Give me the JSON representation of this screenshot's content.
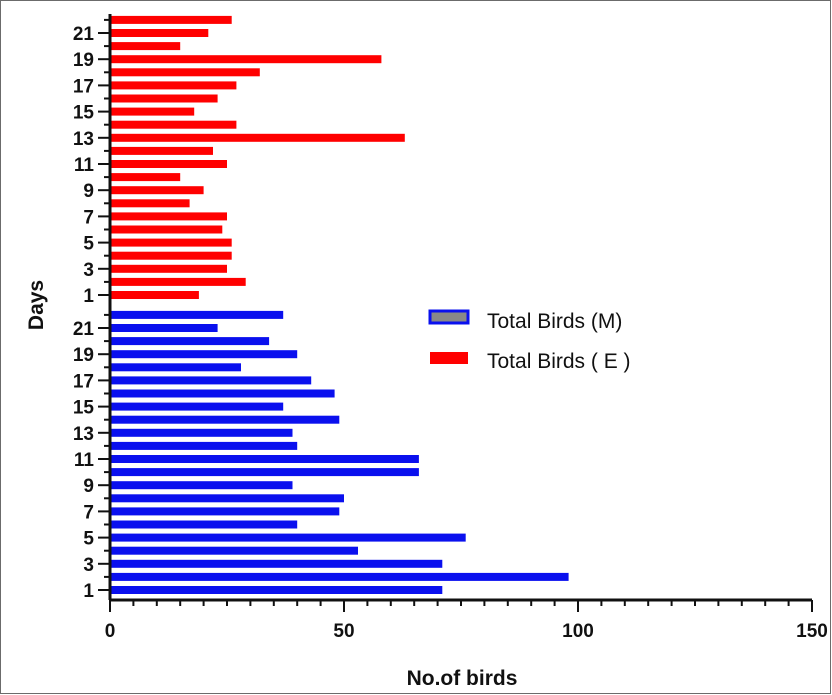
{
  "chart_data": {
    "type": "bar",
    "orientation": "horizontal",
    "xlabel": "No.of birds",
    "ylabel": "Days",
    "xlim": [
      0,
      150
    ],
    "x_ticks": [
      "0",
      "50",
      "100",
      "150"
    ],
    "day_tick_labels": [
      "1",
      "3",
      "5",
      "7",
      "9",
      "11",
      "13",
      "15",
      "17",
      "19",
      "21"
    ],
    "days": [
      1,
      2,
      3,
      4,
      5,
      6,
      7,
      8,
      9,
      10,
      11,
      12,
      13,
      14,
      15,
      16,
      17,
      18,
      19,
      20,
      21,
      22
    ],
    "legend_position": "right-middle",
    "series": [
      {
        "name": "Total Birds (M)",
        "color": "#0a10ee",
        "legend_swatch_color": "#888888",
        "values": [
          71,
          98,
          71,
          53,
          76,
          40,
          49,
          50,
          39,
          66,
          66,
          40,
          39,
          49,
          37,
          48,
          43,
          28,
          40,
          34,
          23,
          37
        ]
      },
      {
        "name": "Total Birds ( E )",
        "color": "#ff0000",
        "legend_swatch_color": "#ff0000",
        "values": [
          19,
          29,
          25,
          26,
          26,
          24,
          25,
          17,
          20,
          15,
          25,
          22,
          63,
          27,
          18,
          23,
          27,
          32,
          58,
          15,
          21,
          26
        ]
      }
    ],
    "grid": false
  }
}
